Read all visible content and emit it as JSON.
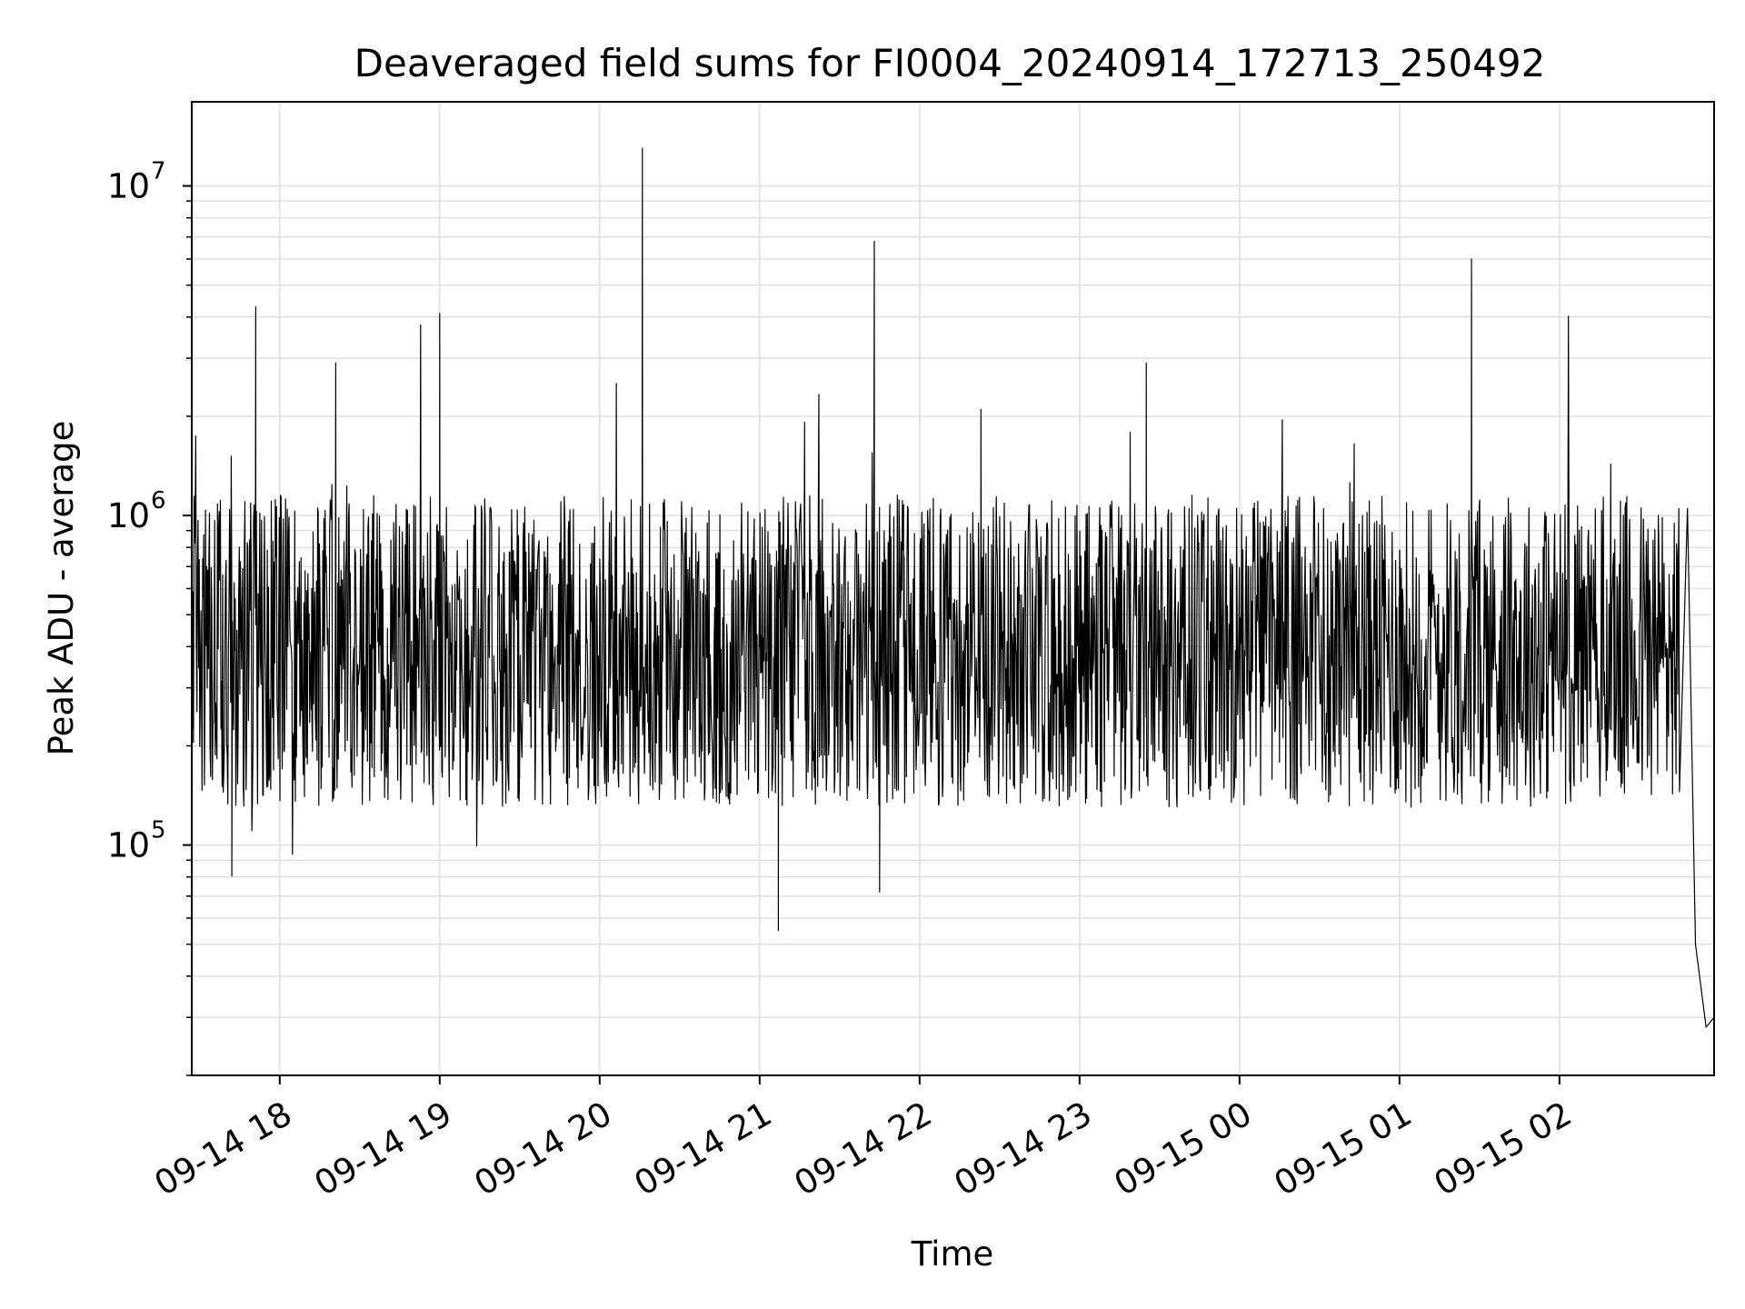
{
  "chart_data": {
    "type": "line",
    "title": "Deaveraged field sums for FI0004_20240914_172713_250492",
    "xlabel": "Time",
    "ylabel": "Peak ADU - average",
    "x_tick_labels": [
      "09-14 18",
      "09-14 19",
      "09-14 20",
      "09-14 21",
      "09-14 22",
      "09-14 23",
      "09-15 00",
      "09-15 01",
      "09-15 02"
    ],
    "y_tick_labels": [
      {
        "value": 100000,
        "base": "10",
        "exponent": "5"
      },
      {
        "value": 1000000,
        "base": "10",
        "exponent": "6"
      },
      {
        "value": 10000000,
        "base": "10",
        "exponent": "7"
      }
    ],
    "yscale": "log",
    "xlim": [
      "2024-09-14 17:27",
      "2024-09-15 02:58"
    ],
    "ylim": [
      20000,
      18000000
    ],
    "grid": true,
    "line_color": "#000000",
    "grid_color": "#e0e0e0",
    "series": [
      {
        "x": [
          "2024-09-14 17:27",
          "2024-09-14 17:42",
          "2024-09-14 17:48",
          "2024-09-14 17:51",
          "2024-09-14 18:12",
          "2024-09-14 18:21",
          "2024-09-14 19:00",
          "2024-09-14 19:10",
          "2024-09-14 20:00",
          "2024-09-14 20:16",
          "2024-09-14 20:30",
          "2024-09-14 21:00",
          "2024-09-14 21:07",
          "2024-09-14 21:43",
          "2024-09-14 21:45",
          "2024-09-14 21:54",
          "2024-09-14 22:23",
          "2024-09-14 23:00",
          "2024-09-14 23:25",
          "2024-09-15 00:00",
          "2024-09-15 00:43",
          "2024-09-15 01:00",
          "2024-09-15 01:27",
          "2024-09-15 02:00",
          "2024-09-15 02:40",
          "2024-09-15 02:48",
          "2024-09-15 02:51",
          "2024-09-15 02:55",
          "2024-09-15 02:58"
        ],
        "y": [
          400000,
          600000,
          800000,
          4300000,
          600000,
          2900000,
          4100000,
          450000,
          500000,
          13000000,
          420000,
          400000,
          55000,
          6800000,
          72000,
          400000,
          2100000,
          480000,
          2900000,
          450000,
          1650000,
          430000,
          6000000,
          500000,
          400000,
          1050000,
          50000,
          28000,
          30000
        ],
        "noise_band_min": 150000,
        "noise_band_max": 1000000
      }
    ]
  }
}
